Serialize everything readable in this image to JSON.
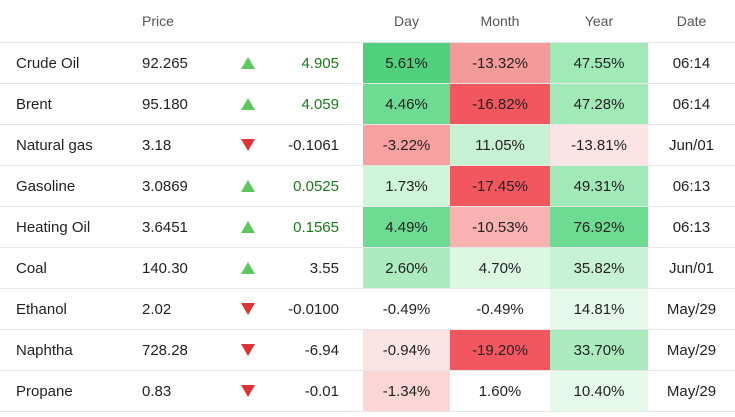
{
  "header": [
    "Price",
    "Day",
    "Month",
    "Year",
    "Date"
  ],
  "up_color": "#5cc85c",
  "down_color": "#e03333",
  "rows": [
    {
      "name": "Crude Oil",
      "price": "92.265",
      "direction": "up",
      "change": "4.905",
      "change_color": "#1a7a1a",
      "day": "5.61%",
      "month": "-13.32%",
      "year": "47.55%",
      "date": "06:14",
      "day_color": "#4fd07c",
      "month_color": "#f59a9a",
      "year_color": "#a2e9b8"
    },
    {
      "name": "Brent",
      "price": "95.180",
      "direction": "up",
      "change": "4.059",
      "change_color": "#1a7a1a",
      "day": "4.46%",
      "month": "-16.82%",
      "year": "47.28%",
      "date": "06:14",
      "day_color": "#6ddb92",
      "month_color": "#f2575f",
      "year_color": "#a2e9b8"
    },
    {
      "name": "Natural gas",
      "price": "3.18",
      "direction": "down",
      "change": "-0.1061",
      "change_color": "#222222",
      "day": "-3.22%",
      "month": "11.05%",
      "year": "-13.81%",
      "date": "Jun/01",
      "day_color": "#f7a1a1",
      "month_color": "#c6f1d2",
      "year_color": "#fde4e4"
    },
    {
      "name": "Gasoline",
      "price": "3.0869",
      "direction": "up",
      "change": "0.0525",
      "change_color": "#1a7a1a",
      "day": "1.73%",
      "month": "-17.45%",
      "year": "49.31%",
      "date": "06:13",
      "day_color": "#cff5da",
      "month_color": "#f2575f",
      "year_color": "#a2e9b8"
    },
    {
      "name": "Heating Oil",
      "price": "3.6451",
      "direction": "up",
      "change": "0.1565",
      "change_color": "#1a7a1a",
      "day": "4.49%",
      "month": "-10.53%",
      "year": "76.92%",
      "date": "06:13",
      "day_color": "#6ddb92",
      "month_color": "#f8b2b2",
      "year_color": "#6ddb92"
    },
    {
      "name": "Coal",
      "price": "140.30",
      "direction": "up",
      "change": "3.55",
      "change_color": "#222222",
      "day": "2.60%",
      "month": "4.70%",
      "year": "35.82%",
      "date": "Jun/01",
      "day_color": "#abebbe",
      "month_color": "#dbf8e3",
      "year_color": "#c6f1d2"
    },
    {
      "name": "Ethanol",
      "price": "2.02",
      "direction": "down",
      "change": "-0.0100",
      "change_color": "#222222",
      "day": "-0.49%",
      "month": "-0.49%",
      "year": "14.81%",
      "date": "May/29",
      "day_color": "#ffffff",
      "month_color": "#ffffff",
      "year_color": "#e6faec"
    },
    {
      "name": "Naphtha",
      "price": "728.28",
      "direction": "down",
      "change": "-6.94",
      "change_color": "#222222",
      "day": "-0.94%",
      "month": "-19.20%",
      "year": "33.70%",
      "date": "May/29",
      "day_color": "#fde4e4",
      "month_color": "#f2575f",
      "year_color": "#abebbe"
    },
    {
      "name": "Propane",
      "price": "0.83",
      "direction": "down",
      "change": "-0.01",
      "change_color": "#222222",
      "day": "-1.34%",
      "month": "1.60%",
      "year": "10.40%",
      "date": "May/29",
      "day_color": "#fcd6d6",
      "month_color": "#ffffff",
      "year_color": "#e6faec"
    }
  ]
}
